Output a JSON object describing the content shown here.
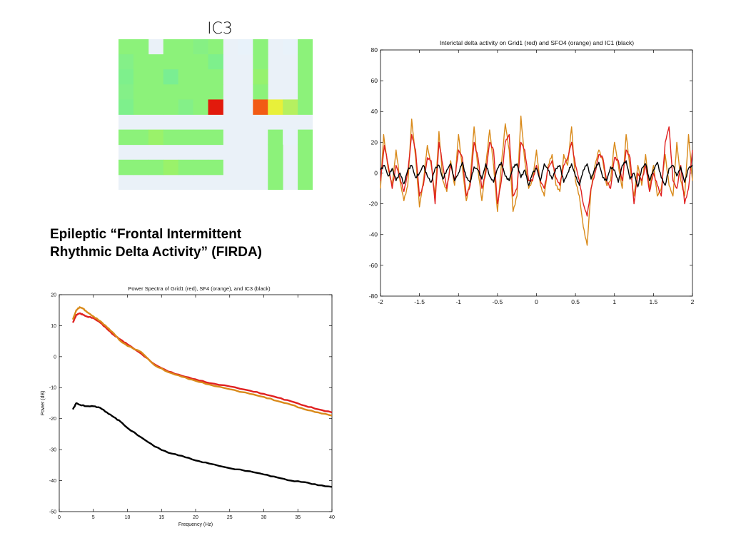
{
  "slide": {
    "heading_line1": "Epileptic “Frontal Intermittent",
    "heading_line2": "Rhythmic Delta Activity” (FIRDA)"
  },
  "colors": {
    "red": "#e02020",
    "orange": "#d98a1a",
    "black": "#000000",
    "map_background": "#eaf1f8",
    "map_green": "#8cf27a",
    "map_light_green": "#7ef08c",
    "map_red": "#e21a0c",
    "map_orange_red": "#f25b14",
    "map_yellow": "#e8f03a",
    "map_yellow_green": "#b6f060"
  },
  "chart_data": [
    {
      "id": "ic3-topography",
      "type": "heatmap",
      "title": "IC3",
      "grid": {
        "rows": 10,
        "cols": 13
      },
      "cells": [
        {
          "row": 0,
          "col": 0,
          "color": "#8cf27a"
        },
        {
          "row": 0,
          "col": 1,
          "color": "#8cf27a"
        },
        {
          "row": 0,
          "col": 3,
          "color": "#8cf27a"
        },
        {
          "row": 0,
          "col": 4,
          "color": "#8cf27a"
        },
        {
          "row": 0,
          "col": 5,
          "color": "#86f084"
        },
        {
          "row": 0,
          "col": 6,
          "color": "#8cf27a"
        },
        {
          "row": 0,
          "col": 8,
          "color": "#e8f2fa"
        },
        {
          "row": 0,
          "col": 9,
          "color": "#8cf27a"
        },
        {
          "row": 0,
          "col": 11,
          "color": "#e8f2fa"
        },
        {
          "row": 0,
          "col": 12,
          "color": "#8cf27a"
        },
        {
          "row": 1,
          "col": 0,
          "color": "#84f088"
        },
        {
          "row": 1,
          "col": 1,
          "color": "#8cf27a"
        },
        {
          "row": 1,
          "col": 2,
          "color": "#8cf27a"
        },
        {
          "row": 1,
          "col": 3,
          "color": "#8cf27a"
        },
        {
          "row": 1,
          "col": 4,
          "color": "#8cf27a"
        },
        {
          "row": 1,
          "col": 5,
          "color": "#8cf27a"
        },
        {
          "row": 1,
          "col": 6,
          "color": "#7ef08c"
        },
        {
          "row": 1,
          "col": 9,
          "color": "#8cf27a"
        },
        {
          "row": 1,
          "col": 12,
          "color": "#8cf27a"
        },
        {
          "row": 2,
          "col": 0,
          "color": "#7ef08c"
        },
        {
          "row": 2,
          "col": 1,
          "color": "#8cf27a"
        },
        {
          "row": 2,
          "col": 2,
          "color": "#8cf27a"
        },
        {
          "row": 2,
          "col": 3,
          "color": "#7aee92"
        },
        {
          "row": 2,
          "col": 4,
          "color": "#8cf27a"
        },
        {
          "row": 2,
          "col": 5,
          "color": "#8cf27a"
        },
        {
          "row": 2,
          "col": 6,
          "color": "#8cf27a"
        },
        {
          "row": 2,
          "col": 9,
          "color": "#96f26e"
        },
        {
          "row": 2,
          "col": 12,
          "color": "#8cf27a"
        },
        {
          "row": 3,
          "col": 0,
          "color": "#84f088"
        },
        {
          "row": 3,
          "col": 1,
          "color": "#8cf27a"
        },
        {
          "row": 3,
          "col": 2,
          "color": "#8cf27a"
        },
        {
          "row": 3,
          "col": 3,
          "color": "#8cf27a"
        },
        {
          "row": 3,
          "col": 4,
          "color": "#8cf27a"
        },
        {
          "row": 3,
          "col": 5,
          "color": "#8cf27a"
        },
        {
          "row": 3,
          "col": 6,
          "color": "#8cf27a"
        },
        {
          "row": 3,
          "col": 9,
          "color": "#8cf27a"
        },
        {
          "row": 3,
          "col": 12,
          "color": "#8cf27a"
        },
        {
          "row": 4,
          "col": 0,
          "color": "#7ef08c"
        },
        {
          "row": 4,
          "col": 1,
          "color": "#8cf27a"
        },
        {
          "row": 4,
          "col": 2,
          "color": "#8cf27a"
        },
        {
          "row": 4,
          "col": 3,
          "color": "#8cf27a"
        },
        {
          "row": 4,
          "col": 4,
          "color": "#84f088"
        },
        {
          "row": 4,
          "col": 5,
          "color": "#8cf27a"
        },
        {
          "row": 4,
          "col": 6,
          "color": "#e21a0c"
        },
        {
          "row": 4,
          "col": 9,
          "color": "#f25b14"
        },
        {
          "row": 4,
          "col": 10,
          "color": "#e8f03a"
        },
        {
          "row": 4,
          "col": 11,
          "color": "#b6f060"
        },
        {
          "row": 4,
          "col": 12,
          "color": "#8cf27a"
        },
        {
          "row": 6,
          "col": 0,
          "color": "#8cf27a"
        },
        {
          "row": 6,
          "col": 1,
          "color": "#8cf27a"
        },
        {
          "row": 6,
          "col": 2,
          "color": "#9af26a"
        },
        {
          "row": 6,
          "col": 3,
          "color": "#8cf27a"
        },
        {
          "row": 6,
          "col": 4,
          "color": "#8cf27a"
        },
        {
          "row": 6,
          "col": 5,
          "color": "#8cf27a"
        },
        {
          "row": 6,
          "col": 6,
          "color": "#8cf27a"
        },
        {
          "row": 6,
          "col": 10,
          "color": "#8cf27a"
        },
        {
          "row": 6,
          "col": 11,
          "color": "#e8f2fa"
        },
        {
          "row": 6,
          "col": 12,
          "color": "#8cf27a"
        },
        {
          "row": 7,
          "col": 10,
          "color": "#8cf27a"
        },
        {
          "row": 7,
          "col": 12,
          "color": "#8cf27a"
        },
        {
          "row": 8,
          "col": 0,
          "color": "#8cf27a"
        },
        {
          "row": 8,
          "col": 1,
          "color": "#8cf27a"
        },
        {
          "row": 8,
          "col": 2,
          "color": "#8cf27a"
        },
        {
          "row": 8,
          "col": 3,
          "color": "#9af26a"
        },
        {
          "row": 8,
          "col": 4,
          "color": "#8cf27a"
        },
        {
          "row": 8,
          "col": 5,
          "color": "#8cf27a"
        },
        {
          "row": 8,
          "col": 6,
          "color": "#8cf27a"
        },
        {
          "row": 8,
          "col": 10,
          "color": "#8cf27a"
        },
        {
          "row": 8,
          "col": 12,
          "color": "#8cf27a"
        },
        {
          "row": 9,
          "col": 10,
          "color": "#8cf27a"
        },
        {
          "row": 9,
          "col": 12,
          "color": "#8cf27a"
        }
      ]
    },
    {
      "id": "interictal-delta",
      "type": "line",
      "title": "Interictal delta activity on Grid1 (red) and SFO4 (orange) and IC1 (black)",
      "xlabel": "",
      "ylabel": "",
      "xlim": [
        -2,
        2
      ],
      "ylim": [
        -80,
        80
      ],
      "xticks": [
        "-2",
        "-1.5",
        "-1",
        "-0.5",
        "0",
        "0.5",
        "1",
        "1.5",
        "2"
      ],
      "yticks": [
        "80",
        "60",
        "40",
        "20",
        "0",
        "-20",
        "-40",
        "-60",
        "-80"
      ],
      "series": [
        {
          "color": "#d98a1a",
          "x": [
            -2.0,
            -1.96,
            -1.9,
            -1.85,
            -1.8,
            -1.75,
            -1.7,
            -1.65,
            -1.6,
            -1.55,
            -1.5,
            -1.45,
            -1.4,
            -1.35,
            -1.3,
            -1.25,
            -1.2,
            -1.15,
            -1.1,
            -1.05,
            -1.0,
            -0.95,
            -0.9,
            -0.85,
            -0.8,
            -0.75,
            -0.7,
            -0.65,
            -0.6,
            -0.55,
            -0.5,
            -0.45,
            -0.4,
            -0.35,
            -0.3,
            -0.25,
            -0.2,
            -0.15,
            -0.1,
            -0.05,
            0.0,
            0.05,
            0.1,
            0.15,
            0.2,
            0.25,
            0.3,
            0.35,
            0.4,
            0.45,
            0.5,
            0.55,
            0.6,
            0.65,
            0.7,
            0.75,
            0.8,
            0.85,
            0.9,
            0.95,
            1.0,
            1.05,
            1.1,
            1.15,
            1.2,
            1.25,
            1.3,
            1.35,
            1.4,
            1.45,
            1.5,
            1.55,
            1.6,
            1.65,
            1.7,
            1.75,
            1.8,
            1.85,
            1.9,
            1.95,
            2.0
          ],
          "y": [
            -10,
            25,
            2,
            -8,
            15,
            -5,
            -18,
            -8,
            35,
            10,
            -22,
            -5,
            18,
            5,
            -15,
            27,
            -5,
            -12,
            8,
            -8,
            25,
            3,
            -18,
            -5,
            30,
            2,
            -18,
            5,
            28,
            5,
            -25,
            5,
            32,
            15,
            -25,
            -15,
            37,
            8,
            -10,
            -5,
            15,
            -8,
            -15,
            5,
            12,
            -8,
            -12,
            12,
            5,
            30,
            -5,
            -15,
            -35,
            -47,
            -10,
            5,
            15,
            8,
            -8,
            -5,
            20,
            5,
            -10,
            25,
            3,
            -15,
            5,
            -8,
            12,
            -10,
            5,
            -15,
            -10,
            12,
            -8,
            -15,
            20,
            -5,
            -15,
            25,
            -5
          ]
        },
        {
          "color": "#e02020",
          "x": [
            -2.0,
            -1.95,
            -1.9,
            -1.85,
            -1.8,
            -1.75,
            -1.7,
            -1.65,
            -1.6,
            -1.55,
            -1.5,
            -1.45,
            -1.4,
            -1.35,
            -1.3,
            -1.25,
            -1.2,
            -1.15,
            -1.1,
            -1.05,
            -1.0,
            -0.95,
            -0.9,
            -0.85,
            -0.8,
            -0.75,
            -0.7,
            -0.65,
            -0.6,
            -0.55,
            -0.5,
            -0.45,
            -0.4,
            -0.35,
            -0.3,
            -0.25,
            -0.2,
            -0.15,
            -0.1,
            -0.05,
            0.0,
            0.05,
            0.1,
            0.15,
            0.2,
            0.25,
            0.3,
            0.35,
            0.4,
            0.45,
            0.5,
            0.55,
            0.6,
            0.65,
            0.7,
            0.75,
            0.8,
            0.85,
            0.9,
            0.95,
            1.0,
            1.05,
            1.1,
            1.15,
            1.2,
            1.25,
            1.3,
            1.35,
            1.4,
            1.45,
            1.5,
            1.55,
            1.6,
            1.65,
            1.7,
            1.75,
            1.8,
            1.85,
            1.9,
            1.95,
            2.0
          ],
          "y": [
            -5,
            18,
            5,
            -10,
            5,
            -3,
            -12,
            0,
            25,
            15,
            -15,
            -8,
            10,
            8,
            -20,
            20,
            5,
            -10,
            5,
            -5,
            15,
            10,
            -15,
            -8,
            20,
            10,
            -10,
            0,
            20,
            15,
            -20,
            -5,
            20,
            25,
            -15,
            -10,
            20,
            15,
            -5,
            -5,
            5,
            -5,
            -10,
            3,
            8,
            -3,
            -8,
            5,
            10,
            20,
            5,
            -5,
            -20,
            -28,
            -10,
            0,
            12,
            10,
            -5,
            -10,
            10,
            8,
            -5,
            15,
            10,
            -20,
            0,
            -5,
            5,
            -12,
            0,
            -8,
            -15,
            20,
            30,
            -5,
            -10,
            5,
            -20,
            -10,
            15
          ]
        },
        {
          "color": "#000000",
          "x": [
            -2.0,
            -1.95,
            -1.9,
            -1.85,
            -1.8,
            -1.75,
            -1.7,
            -1.65,
            -1.6,
            -1.55,
            -1.5,
            -1.45,
            -1.4,
            -1.35,
            -1.3,
            -1.25,
            -1.2,
            -1.15,
            -1.1,
            -1.05,
            -1.0,
            -0.95,
            -0.9,
            -0.85,
            -0.8,
            -0.75,
            -0.7,
            -0.65,
            -0.6,
            -0.55,
            -0.5,
            -0.45,
            -0.4,
            -0.35,
            -0.3,
            -0.25,
            -0.2,
            -0.15,
            -0.1,
            -0.05,
            0.0,
            0.05,
            0.1,
            0.15,
            0.2,
            0.25,
            0.3,
            0.35,
            0.4,
            0.45,
            0.5,
            0.55,
            0.6,
            0.65,
            0.7,
            0.75,
            0.8,
            0.85,
            0.9,
            0.95,
            1.0,
            1.05,
            1.1,
            1.15,
            1.2,
            1.25,
            1.3,
            1.35,
            1.4,
            1.45,
            1.5,
            1.55,
            1.6,
            1.65,
            1.7,
            1.75,
            1.8,
            1.85,
            1.9,
            1.95,
            2.0
          ],
          "y": [
            2,
            5,
            -2,
            3,
            -5,
            0,
            -7,
            2,
            5,
            -3,
            0,
            5,
            -2,
            -6,
            3,
            5,
            -4,
            2,
            6,
            -5,
            0,
            7,
            -3,
            -6,
            4,
            2,
            -4,
            6,
            -2,
            -6,
            3,
            7,
            -2,
            -5,
            4,
            6,
            -3,
            2,
            -8,
            0,
            3,
            -5,
            6,
            2,
            -4,
            3,
            5,
            -6,
            0,
            6,
            -2,
            -8,
            2,
            6,
            -4,
            3,
            7,
            -3,
            -5,
            4,
            2,
            -6,
            5,
            8,
            -4,
            0,
            -9,
            3,
            6,
            -5,
            2,
            7,
            -3,
            -8,
            3,
            5,
            -2,
            4,
            -6,
            3,
            5
          ]
        }
      ]
    },
    {
      "id": "power-spectra",
      "type": "line",
      "title": "Power Spectra of Grid1 (red), SF4 (orange), and IC3 (black)",
      "xlabel": "Frequency (Hz)",
      "ylabel": "Power (dB)",
      "xlim": [
        0,
        40
      ],
      "ylim": [
        -50,
        20
      ],
      "xticks": [
        "0",
        "5",
        "10",
        "15",
        "20",
        "25",
        "30",
        "35",
        "40"
      ],
      "yticks": [
        "20",
        "10",
        "0",
        "-10",
        "-20",
        "-30",
        "-40",
        "-50"
      ],
      "series": [
        {
          "color": "#e02020",
          "x": [
            2,
            2.5,
            3,
            3.5,
            4,
            5,
            6,
            7,
            8,
            9,
            10,
            12,
            14,
            16,
            18,
            20,
            22,
            25,
            28,
            30,
            32,
            34,
            36,
            38,
            40
          ],
          "y": [
            11,
            13.5,
            14,
            13.5,
            13,
            12.5,
            11,
            9,
            7,
            5.5,
            4,
            1,
            -2.5,
            -4.8,
            -6.2,
            -7.3,
            -8.5,
            -9.6,
            -11,
            -12,
            -13.2,
            -14.4,
            -15.8,
            -17,
            -18
          ]
        },
        {
          "color": "#d98a1a",
          "x": [
            2,
            2.5,
            3,
            3.5,
            4,
            5,
            6,
            7,
            8,
            9,
            10,
            12,
            14,
            16,
            18,
            20,
            22,
            25,
            28,
            30,
            32,
            34,
            36,
            38,
            40
          ],
          "y": [
            12,
            15,
            16,
            15.5,
            14.5,
            13,
            11.5,
            9.5,
            7.5,
            5,
            3.5,
            1.5,
            -2.8,
            -5,
            -6.5,
            -7.8,
            -9,
            -10.5,
            -12,
            -13,
            -14.3,
            -15.5,
            -17,
            -18,
            -19
          ]
        },
        {
          "color": "#000000",
          "x": [
            2,
            2.5,
            3,
            4,
            5,
            6,
            7,
            8,
            9,
            10,
            12,
            14,
            16,
            18,
            20,
            22,
            25,
            28,
            30,
            32,
            34,
            36,
            38,
            40
          ],
          "y": [
            -17,
            -15,
            -15.5,
            -16,
            -16,
            -16.5,
            -18,
            -19.5,
            -21,
            -23,
            -26,
            -29,
            -31,
            -32,
            -33.5,
            -34.5,
            -36,
            -37,
            -38,
            -39,
            -40,
            -40.5,
            -41.5,
            -42
          ]
        }
      ]
    }
  ]
}
